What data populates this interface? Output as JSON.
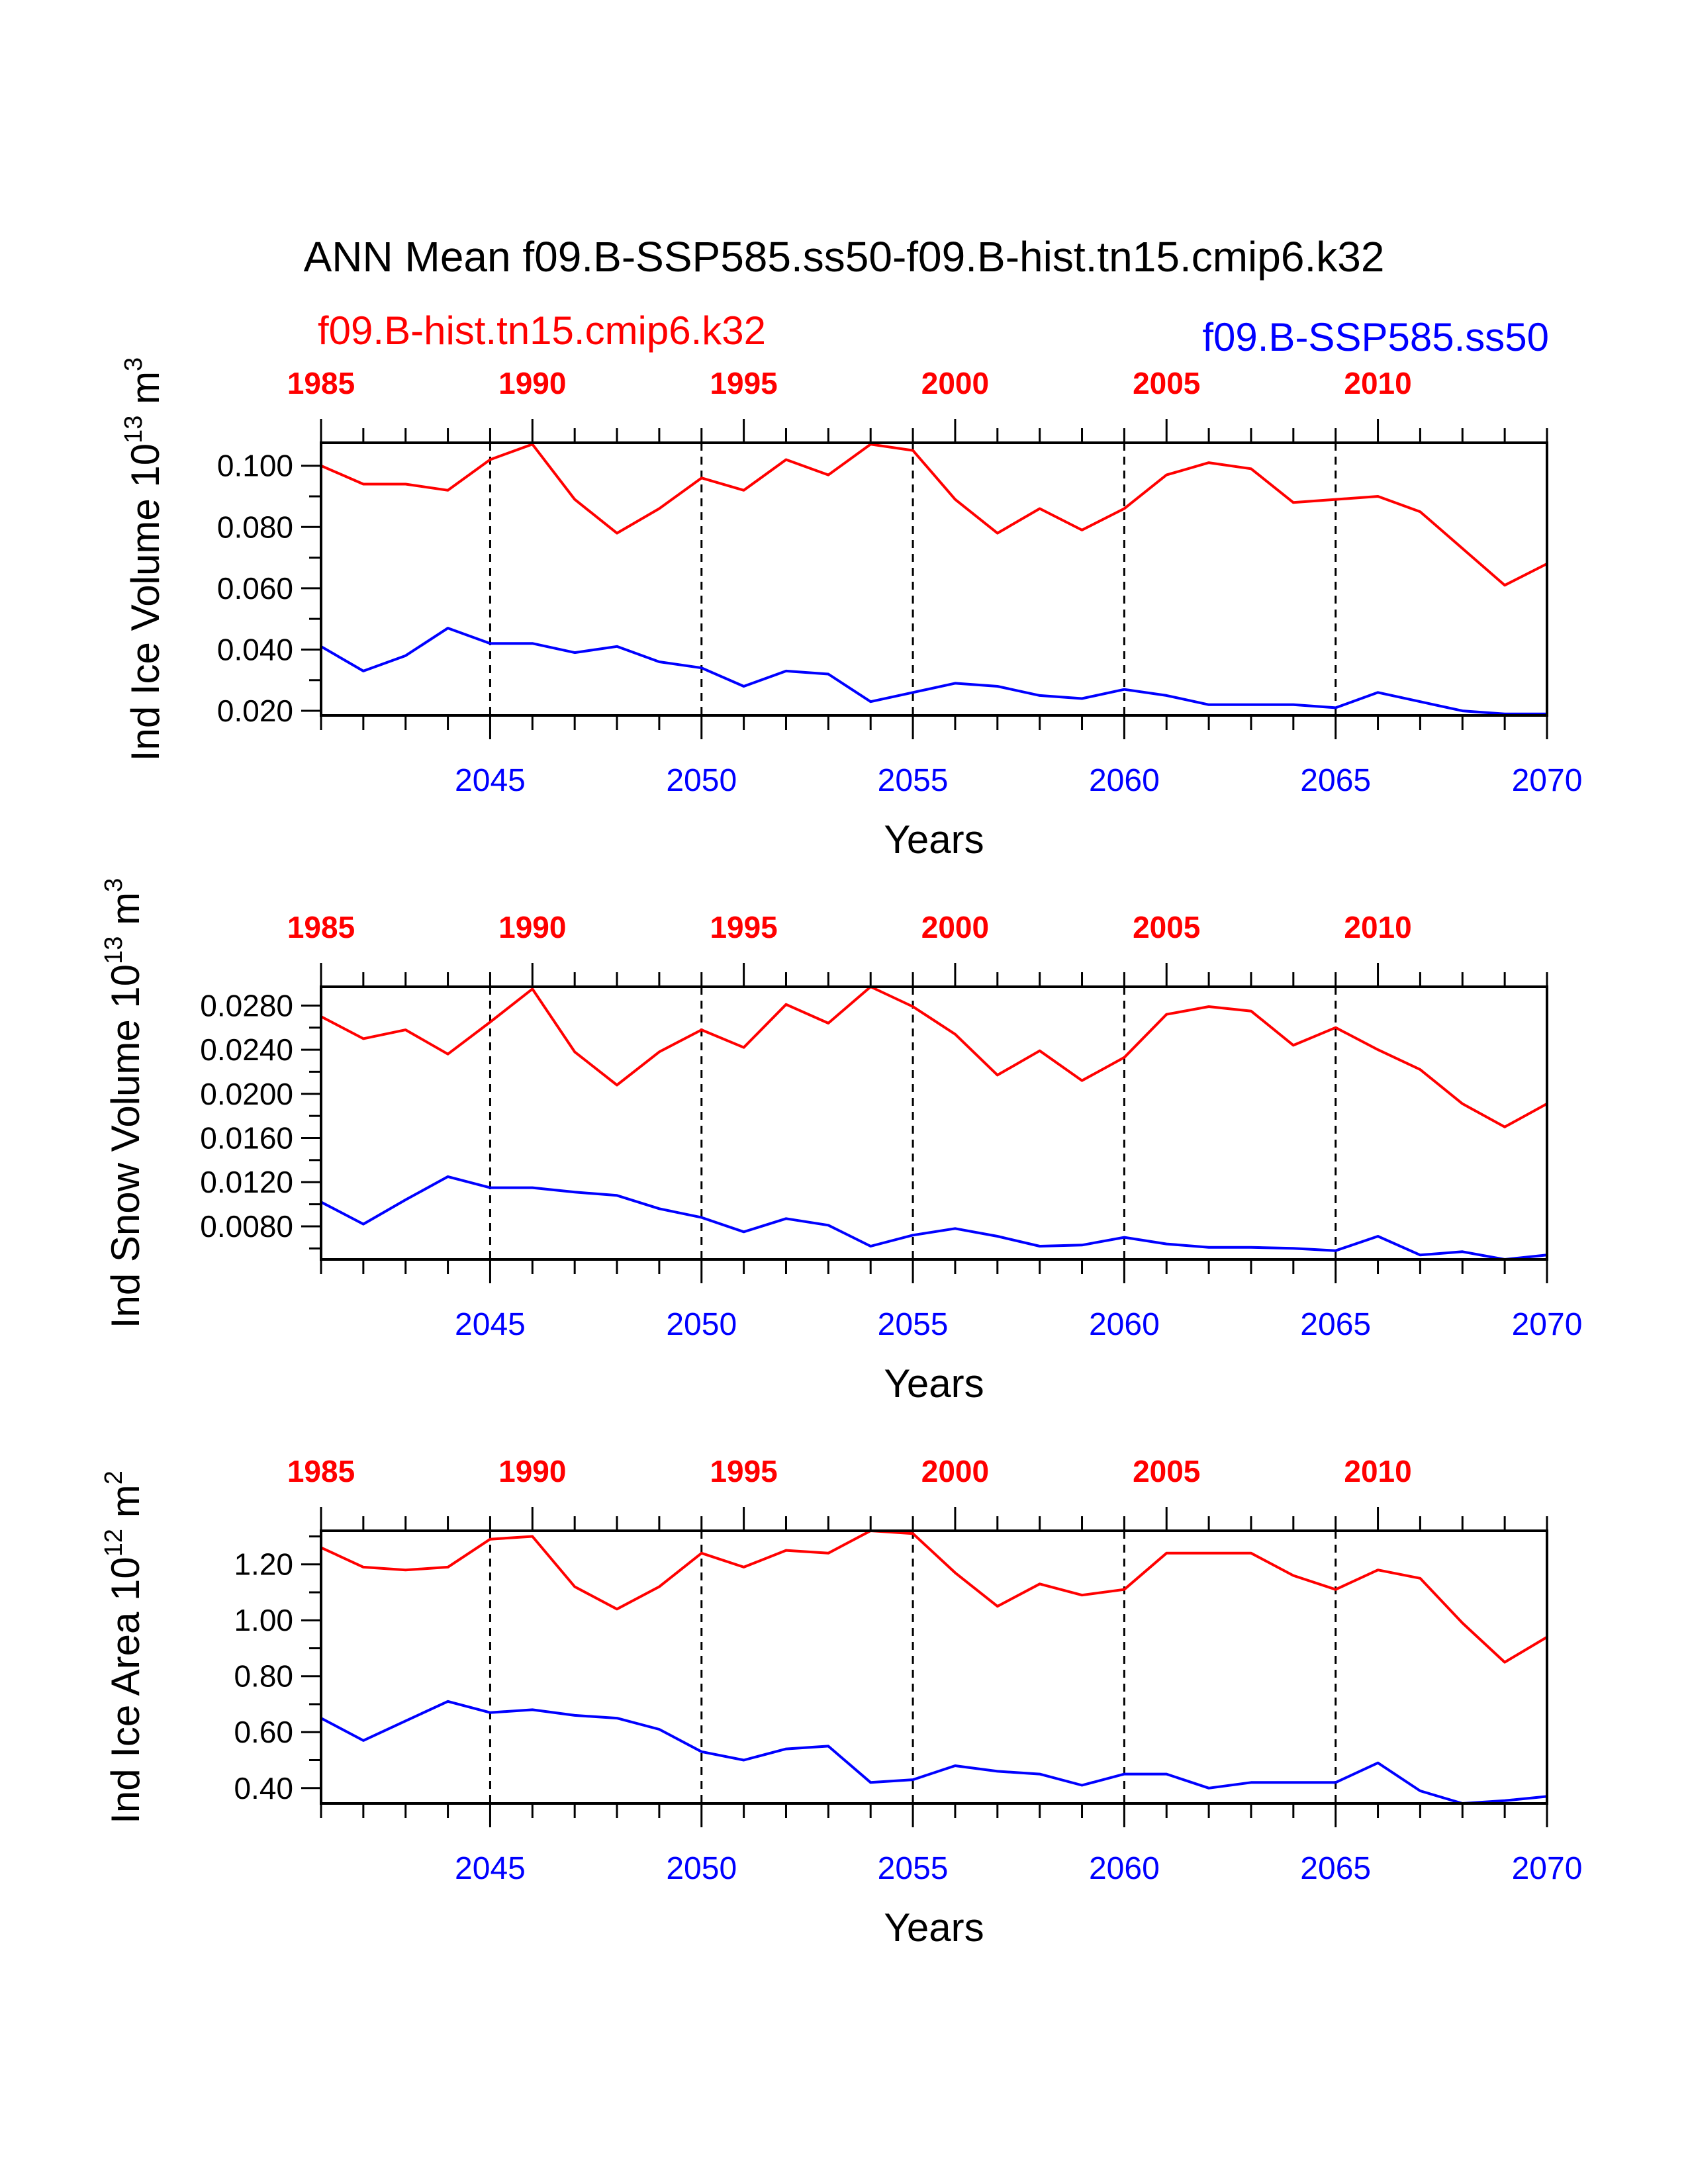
{
  "title": "ANN Mean f09.B-SSP585.ss50-f09.B-hist.tn15.cmip6.k32",
  "legend": {
    "left": {
      "label": "f09.B-hist.tn15.cmip6.k32",
      "color": "#ff0000"
    },
    "right": {
      "label": "f09.B-SSP585.ss50",
      "color": "#0000ff"
    }
  },
  "colors": {
    "hist": "#ff0000",
    "ssp": "#0000ff",
    "axis": "#000000"
  },
  "chart_data": [
    {
      "type": "line",
      "ylabel": "Ind Ice Volume 10",
      "ylabel_exp": "13",
      "ylabel_unit": " m",
      "ylabel_unit_exp": "3",
      "xlabel": "Years",
      "x_bottom": [
        2041,
        2042,
        2043,
        2044,
        2045,
        2046,
        2047,
        2048,
        2049,
        2050,
        2051,
        2052,
        2053,
        2054,
        2055,
        2056,
        2057,
        2058,
        2059,
        2060,
        2061,
        2062,
        2063,
        2064,
        2065,
        2066,
        2067,
        2068,
        2069,
        2070
      ],
      "bottom_ticks": [
        "2045",
        "2050",
        "2055",
        "2060",
        "2065",
        "2070"
      ],
      "top_ticks": [
        "1985",
        "1990",
        "1995",
        "2000",
        "2005",
        "2010"
      ],
      "ylim": [
        0.0185,
        0.1075
      ],
      "yticks": [
        "0.020",
        "0.040",
        "0.060",
        "0.080",
        "0.100"
      ],
      "series": [
        {
          "key": "hist",
          "values": [
            0.1,
            0.094,
            0.094,
            0.092,
            0.102,
            0.107,
            0.089,
            0.078,
            0.086,
            0.096,
            0.092,
            0.102,
            0.097,
            0.107,
            0.105,
            0.089,
            0.078,
            0.086,
            0.079,
            0.086,
            0.097,
            0.101,
            0.099,
            0.088,
            0.089,
            0.09,
            0.085,
            0.073,
            0.061,
            0.068
          ]
        },
        {
          "key": "ssp",
          "values": [
            0.041,
            0.033,
            0.038,
            0.047,
            0.042,
            0.042,
            0.039,
            0.041,
            0.036,
            0.034,
            0.028,
            0.033,
            0.032,
            0.023,
            0.026,
            0.029,
            0.028,
            0.025,
            0.024,
            0.027,
            0.025,
            0.022,
            0.022,
            0.022,
            0.021,
            0.026,
            0.023,
            0.02,
            0.019,
            0.019
          ]
        }
      ]
    },
    {
      "type": "line",
      "ylabel": "Ind Snow Volume 10",
      "ylabel_exp": "13",
      "ylabel_unit": " m",
      "ylabel_unit_exp": "3",
      "xlabel": "Years",
      "x_bottom": [
        2041,
        2042,
        2043,
        2044,
        2045,
        2046,
        2047,
        2048,
        2049,
        2050,
        2051,
        2052,
        2053,
        2054,
        2055,
        2056,
        2057,
        2058,
        2059,
        2060,
        2061,
        2062,
        2063,
        2064,
        2065,
        2066,
        2067,
        2068,
        2069,
        2070
      ],
      "bottom_ticks": [
        "2045",
        "2050",
        "2055",
        "2060",
        "2065",
        "2070"
      ],
      "top_ticks": [
        "1985",
        "1990",
        "1995",
        "2000",
        "2005",
        "2010"
      ],
      "ylim": [
        0.005,
        0.0297
      ],
      "yticks": [
        "0.0080",
        "0.0120",
        "0.0160",
        "0.0200",
        "0.0240",
        "0.0280"
      ],
      "series": [
        {
          "key": "hist",
          "values": [
            0.027,
            0.025,
            0.0258,
            0.0236,
            0.0265,
            0.0295,
            0.0238,
            0.0208,
            0.0238,
            0.0258,
            0.0242,
            0.0281,
            0.0264,
            0.0297,
            0.0279,
            0.0254,
            0.0217,
            0.0239,
            0.0212,
            0.0233,
            0.0272,
            0.0279,
            0.0275,
            0.0244,
            0.026,
            0.024,
            0.0222,
            0.0191,
            0.017,
            0.0191
          ]
        },
        {
          "key": "ssp",
          "values": [
            0.0102,
            0.0082,
            0.0104,
            0.0125,
            0.0115,
            0.0115,
            0.0111,
            0.0108,
            0.0096,
            0.0088,
            0.0075,
            0.0087,
            0.0081,
            0.0062,
            0.0072,
            0.0078,
            0.0071,
            0.0062,
            0.0063,
            0.007,
            0.0064,
            0.0061,
            0.0061,
            0.006,
            0.0058,
            0.0071,
            0.0054,
            0.0057,
            0.005,
            0.0054
          ]
        }
      ]
    },
    {
      "type": "line",
      "ylabel": "Ind Ice Area 10",
      "ylabel_exp": "12",
      "ylabel_unit": " m",
      "ylabel_unit_exp": "2",
      "xlabel": "Years",
      "x_bottom": [
        2041,
        2042,
        2043,
        2044,
        2045,
        2046,
        2047,
        2048,
        2049,
        2050,
        2051,
        2052,
        2053,
        2054,
        2055,
        2056,
        2057,
        2058,
        2059,
        2060,
        2061,
        2062,
        2063,
        2064,
        2065,
        2066,
        2067,
        2068,
        2069,
        2070
      ],
      "bottom_ticks": [
        "2045",
        "2050",
        "2055",
        "2060",
        "2065",
        "2070"
      ],
      "top_ticks": [
        "1985",
        "1990",
        "1995",
        "2000",
        "2005",
        "2010"
      ],
      "ylim": [
        0.345,
        1.32
      ],
      "yticks": [
        "0.40",
        "0.60",
        "0.80",
        "1.00",
        "1.20"
      ],
      "series": [
        {
          "key": "hist",
          "values": [
            1.26,
            1.19,
            1.18,
            1.19,
            1.29,
            1.3,
            1.12,
            1.04,
            1.12,
            1.24,
            1.19,
            1.25,
            1.24,
            1.32,
            1.31,
            1.17,
            1.05,
            1.13,
            1.09,
            1.11,
            1.24,
            1.24,
            1.24,
            1.16,
            1.11,
            1.18,
            1.15,
            0.99,
            0.85,
            0.94
          ]
        },
        {
          "key": "ssp",
          "values": [
            0.65,
            0.57,
            0.64,
            0.71,
            0.67,
            0.68,
            0.66,
            0.65,
            0.61,
            0.53,
            0.5,
            0.54,
            0.55,
            0.42,
            0.43,
            0.48,
            0.46,
            0.45,
            0.41,
            0.45,
            0.45,
            0.4,
            0.42,
            0.42,
            0.42,
            0.49,
            0.39,
            0.345,
            0.355,
            0.37
          ]
        }
      ]
    }
  ]
}
